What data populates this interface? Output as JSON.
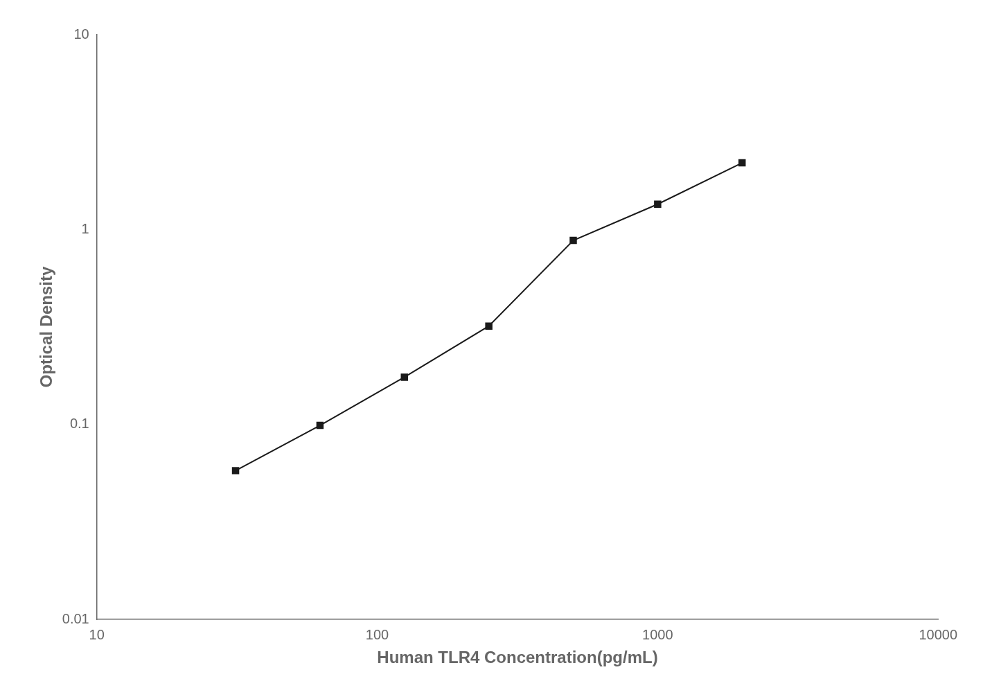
{
  "chart_data": {
    "type": "line",
    "x": [
      31.25,
      62.5,
      125,
      250,
      500,
      1000,
      2000
    ],
    "values": [
      0.058,
      0.099,
      0.175,
      0.32,
      0.88,
      1.35,
      2.2
    ],
    "xlabel": "Human TLR4 Concentration(pg/mL)",
    "ylabel": "Optical Density",
    "xlim": [
      10,
      10000
    ],
    "ylim": [
      0.01,
      10
    ],
    "xticks": [
      10,
      100,
      1000,
      10000
    ],
    "yticks": [
      0.01,
      0.1,
      1,
      10
    ],
    "log": true,
    "grid": false,
    "color": "#1a1a1a",
    "marker": "square",
    "line_style": "solid"
  }
}
